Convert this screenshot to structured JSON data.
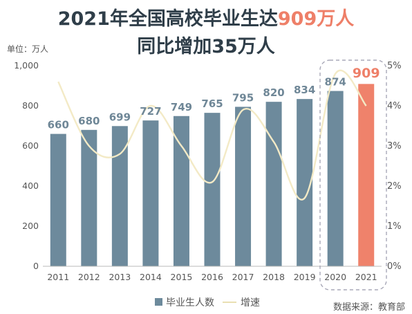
{
  "title_pre": "2021年全国高校毕业生达",
  "title_highlight": "909万人",
  "subtitle": "同比增加35万人",
  "unit_label": "单位：万人",
  "source": "数据来源：教育部",
  "colors": {
    "bar": "#6d8a9c",
    "bar_highlight": "#ef826b",
    "line": "#f3eac6",
    "title": "#2f3e49",
    "label": "#6f8797",
    "highlight": "#ee7f68",
    "box": "#a9a9b8"
  },
  "chart_data": {
    "type": "bar",
    "categories": [
      "2011",
      "2012",
      "2013",
      "2014",
      "2015",
      "2016",
      "2017",
      "2018",
      "2019",
      "2020",
      "2021"
    ],
    "series": [
      {
        "name": "毕业生人数",
        "type": "bar",
        "axis": "left",
        "values": [
          660,
          680,
          699,
          727,
          749,
          765,
          795,
          820,
          834,
          874,
          909
        ]
      },
      {
        "name": "增速",
        "type": "line",
        "axis": "right",
        "values": [
          4.6,
          3.0,
          2.8,
          4.0,
          3.0,
          2.1,
          3.9,
          3.1,
          1.7,
          4.8,
          4.0
        ]
      }
    ],
    "data_labels": [
      "660",
      "680",
      "699",
      "727",
      "749",
      "765",
      "795",
      "820",
      "834",
      "874",
      "909"
    ],
    "y_left": {
      "ylim": [
        0,
        1000
      ],
      "ticks": [
        "0",
        "200",
        "400",
        "600",
        "800",
        "1,000"
      ]
    },
    "y_right": {
      "ylim": [
        0,
        5
      ],
      "ticks": [
        "0%",
        "1%",
        "2%",
        "3%",
        "4%",
        "5%"
      ]
    },
    "legend": [
      "毕业生人数",
      "增速"
    ],
    "legend_position": "bottom-center",
    "grid": false,
    "highlight_categories": [
      "2020",
      "2021"
    ]
  }
}
